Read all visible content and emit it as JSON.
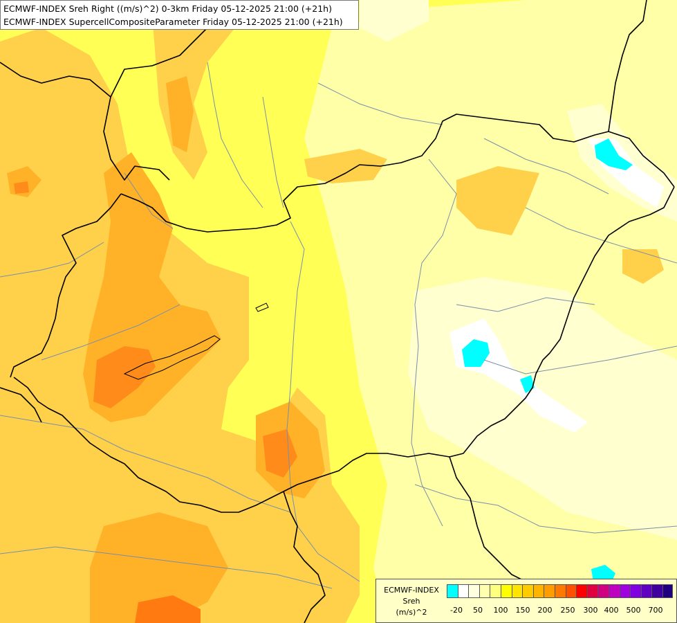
{
  "titles": {
    "line1": "ECMWF-INDEX Sreh Right ((m/s)^2) 0-3km Friday 05-12-2025 21:00 (+21h)",
    "line2": "ECMWF-INDEX SupercellCompositeParameter Friday 05-12-2025 21:00 (+21h)"
  },
  "legend": {
    "source": "ECMWF-INDEX",
    "name": "Sreh",
    "unit": "(m/s)^2",
    "colors": [
      "#00ffff",
      "#ffffff",
      "#ffffe0",
      "#ffffb0",
      "#ffff80",
      "#ffff00",
      "#ffe400",
      "#ffcc00",
      "#ffb400",
      "#ff9c00",
      "#ff7800",
      "#ff5000",
      "#ff0000",
      "#e00040",
      "#d00080",
      "#c000c0",
      "#a000e0",
      "#8000e0",
      "#6000c0",
      "#4000a0",
      "#200080"
    ],
    "ticks": [
      "-20",
      "50",
      "100",
      "150",
      "200",
      "250",
      "300",
      "400",
      "500",
      "700"
    ]
  },
  "map": {
    "colors": {
      "background": "#ffff66",
      "pale": "#ffffb4",
      "very_pale": "#ffffd9",
      "white": "#ffffff",
      "orange_light": "#ffd24d",
      "orange": "#ffb428",
      "orange_dark": "#ff8c1a",
      "cyan": "#00ffff",
      "border": "#000000",
      "river": "#7a8fa8"
    }
  }
}
